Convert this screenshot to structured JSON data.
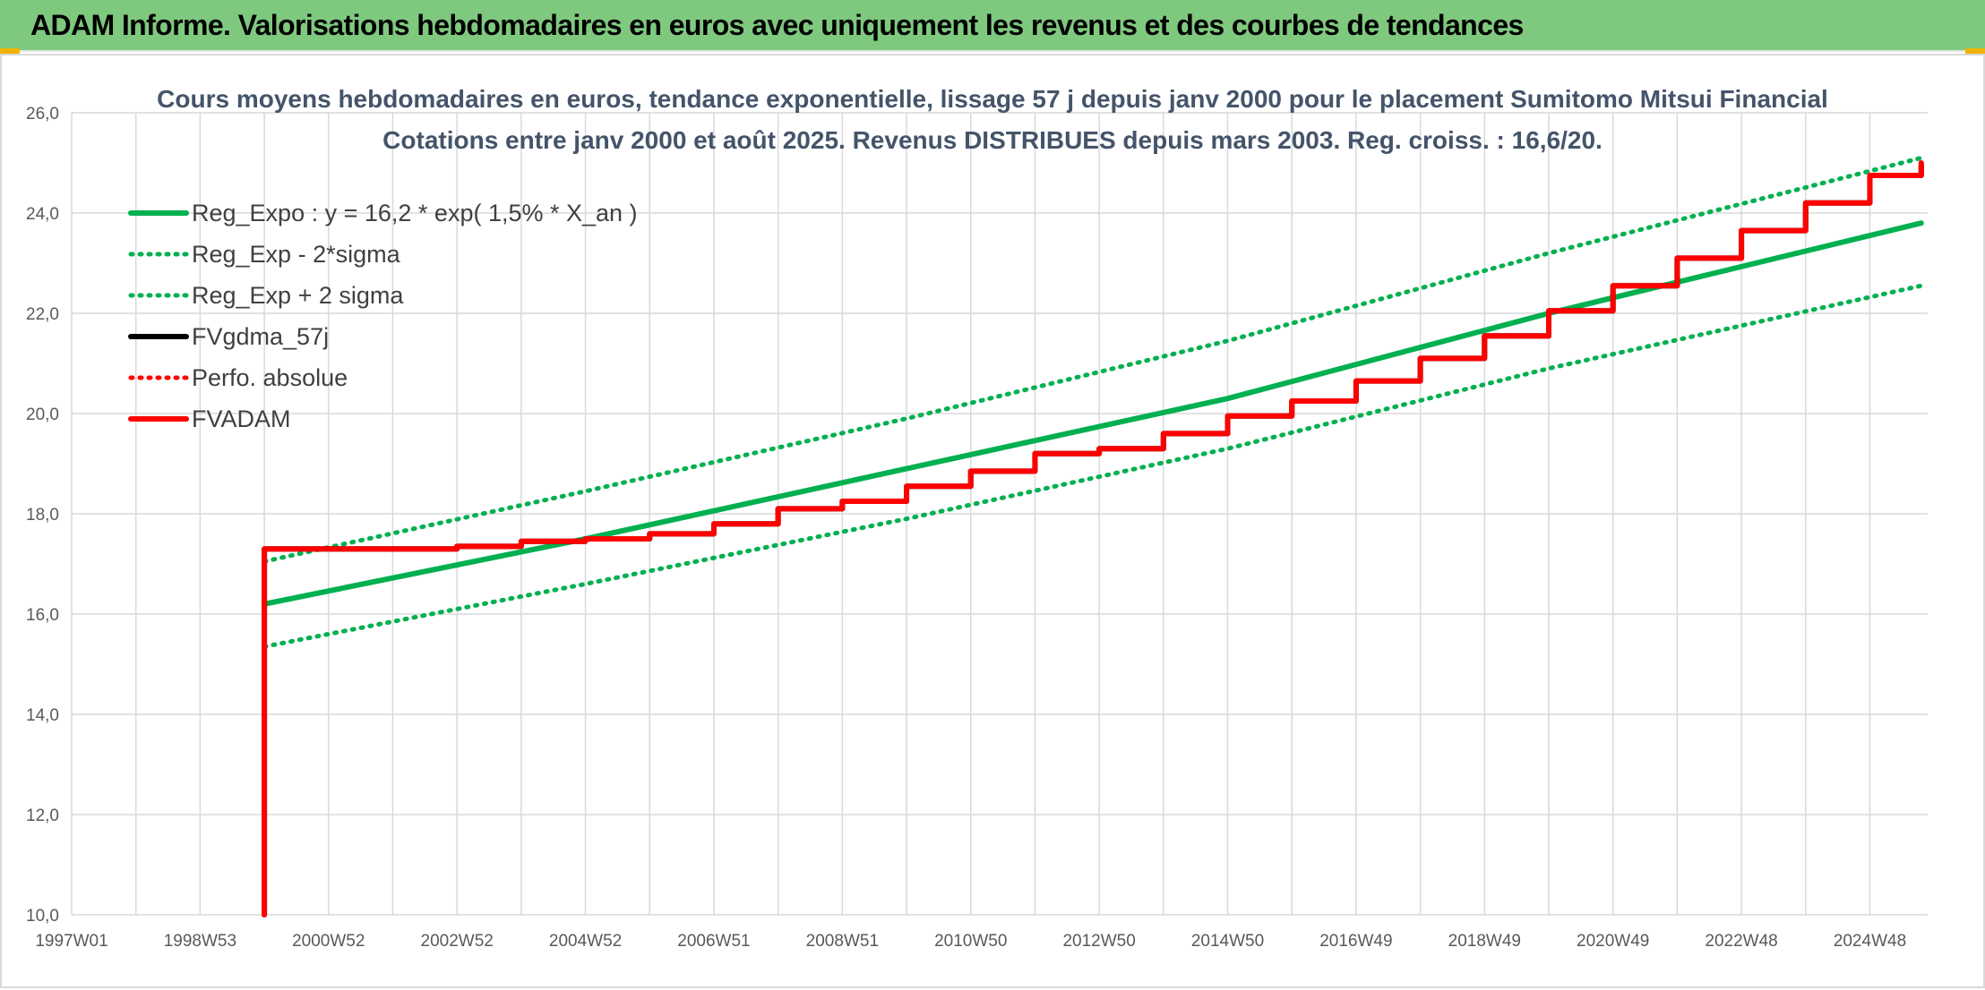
{
  "header": {
    "title": "ADAM Informe. Valorisations hebdomadaires en euros avec uniquement les revenus et des courbes de tendances"
  },
  "colors": {
    "header_bg": "#7fc97f",
    "green": "#00b050",
    "red": "#ff0000",
    "black": "#000000",
    "grid": "#d9d9d9"
  },
  "chart_data": {
    "type": "line",
    "title_lines": [
      "Cours moyens hebdomadaires en euros, tendance exponentielle, lissage 57 j depuis janv 2000 pour le placement Sumitomo Mitsui Financial",
      "Cotations entre janv 2000 et août 2025. Revenus DISTRIBUES depuis mars 2003. Reg. croiss. : 16,6/20."
    ],
    "xlabel": "",
    "ylabel": "",
    "x_range": [
      1997.0,
      2025.9
    ],
    "ylim": [
      10,
      26
    ],
    "y_ticks": [
      "10,0",
      "12,0",
      "14,0",
      "16,0",
      "18,0",
      "20,0",
      "22,0",
      "24,0",
      "26,0"
    ],
    "x_ticks": [
      {
        "label": "1997W01",
        "x": 1997.0
      },
      {
        "label": "1998W53",
        "x": 1999.0
      },
      {
        "label": "2000W52",
        "x": 2001.0
      },
      {
        "label": "2002W52",
        "x": 2003.0
      },
      {
        "label": "2004W52",
        "x": 2005.0
      },
      {
        "label": "2006W51",
        "x": 2007.0
      },
      {
        "label": "2008W51",
        "x": 2009.0
      },
      {
        "label": "2010W50",
        "x": 2011.0
      },
      {
        "label": "2012W50",
        "x": 2013.0
      },
      {
        "label": "2014W50",
        "x": 2015.0
      },
      {
        "label": "2016W49",
        "x": 2017.0
      },
      {
        "label": "2018W49",
        "x": 2019.0
      },
      {
        "label": "2020W49",
        "x": 2021.0
      },
      {
        "label": "2022W48",
        "x": 2023.0
      },
      {
        "label": "2024W48",
        "x": 2025.0
      }
    ],
    "grid": true,
    "legend_position": "top-left",
    "series": [
      {
        "name": "Reg_Expo : y = 16,2 * exp( 1,5% *  X_an )",
        "style": "solid",
        "color": "#00b050",
        "x": [
          2000.0,
          2005.0,
          2010.0,
          2015.0,
          2020.0,
          2025.8
        ],
        "y": [
          16.2,
          17.5,
          18.9,
          20.3,
          22.0,
          23.8
        ]
      },
      {
        "name": "Reg_Exp - 2*sigma",
        "style": "dotted",
        "color": "#00b050",
        "x": [
          2000.0,
          2005.0,
          2010.0,
          2015.0,
          2020.0,
          2025.8
        ],
        "y": [
          15.35,
          16.6,
          17.9,
          19.3,
          20.9,
          22.55
        ]
      },
      {
        "name": "Reg_Exp + 2 sigma",
        "style": "dotted",
        "color": "#00b050",
        "x": [
          2000.0,
          2005.0,
          2010.0,
          2015.0,
          2020.0,
          2025.8
        ],
        "y": [
          17.05,
          18.45,
          19.9,
          21.45,
          23.2,
          25.1
        ]
      },
      {
        "name": "FVgdma_57j",
        "style": "solid",
        "color": "#000000",
        "x": [
          2000.0,
          2000.0,
          2003.0,
          2004.0,
          2005.0,
          2006.0,
          2007.0,
          2008.0,
          2009.0,
          2010.0,
          2011.0,
          2012.0,
          2013.0,
          2014.0,
          2015.0,
          2016.0,
          2017.0,
          2018.0,
          2019.0,
          2020.0,
          2021.0,
          2022.0,
          2023.0,
          2024.0,
          2025.0,
          2025.8
        ],
        "y": [
          10.0,
          17.3,
          17.35,
          17.45,
          17.5,
          17.6,
          17.8,
          18.1,
          18.25,
          18.55,
          18.85,
          19.2,
          19.3,
          19.6,
          19.95,
          20.25,
          20.65,
          21.1,
          21.55,
          22.05,
          22.55,
          23.1,
          23.65,
          24.2,
          24.75,
          24.95
        ]
      },
      {
        "name": "Perfo. absolue",
        "style": "dotted",
        "color": "#ff0000",
        "x": [
          2000.0,
          2000.0,
          2003.0,
          2004.0,
          2005.0,
          2006.0,
          2007.0,
          2008.0,
          2009.0,
          2010.0,
          2011.0,
          2012.0,
          2013.0,
          2014.0,
          2015.0,
          2016.0,
          2017.0,
          2018.0,
          2019.0,
          2020.0,
          2021.0,
          2022.0,
          2023.0,
          2024.0,
          2025.0,
          2025.8
        ],
        "y": [
          10.0,
          17.3,
          17.35,
          17.45,
          17.5,
          17.6,
          17.8,
          18.1,
          18.25,
          18.55,
          18.85,
          19.2,
          19.3,
          19.6,
          19.95,
          20.25,
          20.65,
          21.1,
          21.55,
          22.05,
          22.55,
          23.1,
          23.65,
          24.2,
          24.75,
          24.95
        ]
      },
      {
        "name": "FVADAM",
        "style": "solid",
        "color": "#ff0000",
        "x": [
          2000.0,
          2000.0,
          2003.0,
          2004.0,
          2005.0,
          2006.0,
          2007.0,
          2008.0,
          2009.0,
          2010.0,
          2011.0,
          2012.0,
          2013.0,
          2014.0,
          2015.0,
          2016.0,
          2017.0,
          2018.0,
          2019.0,
          2020.0,
          2021.0,
          2022.0,
          2023.0,
          2024.0,
          2025.0,
          2025.8
        ],
        "y": [
          10.0,
          17.3,
          17.35,
          17.45,
          17.5,
          17.6,
          17.8,
          18.1,
          18.25,
          18.55,
          18.85,
          19.2,
          19.3,
          19.6,
          19.95,
          20.25,
          20.65,
          21.1,
          21.55,
          22.05,
          22.55,
          23.1,
          23.65,
          24.2,
          24.75,
          25.0
        ]
      }
    ]
  }
}
